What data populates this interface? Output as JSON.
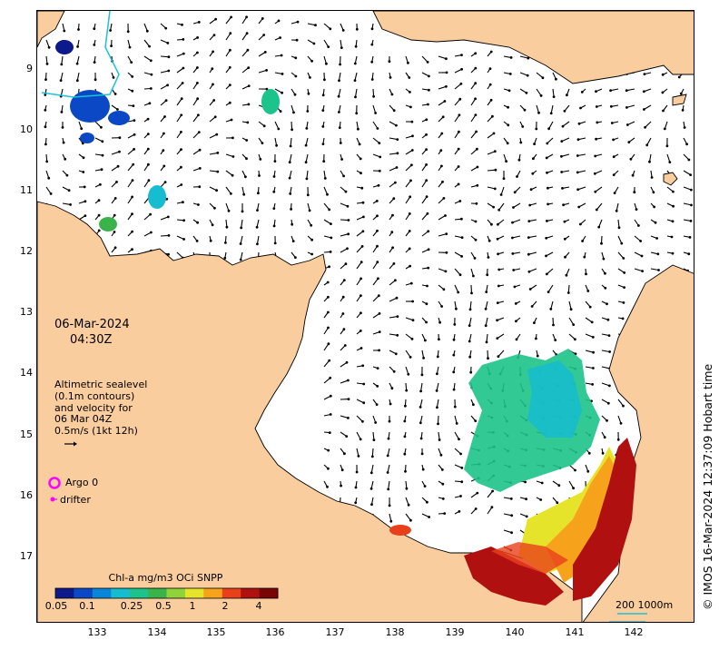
{
  "map": {
    "date": "06-Mar-2024",
    "time": "04:30Z",
    "info_lines": [
      "Altimetric sealevel",
      "(0.1m contours)",
      "and velocity for",
      "06 Mar 04Z",
      "0.5m/s (1kt 12h)"
    ],
    "argo_label": "Argo 0",
    "drifter_label": "drifter",
    "credit": "© IMOS 16-Mar-2024 12:37:09 Hobart time",
    "scale_label": "200  1000m",
    "land_color": "#f9cd9e",
    "argo_color": "#ff00ff"
  },
  "axes": {
    "longitudes": [
      "133",
      "134",
      "135",
      "136",
      "137",
      "138",
      "139",
      "140",
      "141",
      "142"
    ],
    "latitudes": [
      "9",
      "10",
      "11",
      "12",
      "13",
      "14",
      "15",
      "16",
      "17"
    ]
  },
  "colorbar": {
    "title": "Chl-a mg/m3 OCi SNPP",
    "labels": [
      "0.05",
      "0.1",
      "0.25",
      "0.5",
      "1",
      "2",
      "4"
    ],
    "colors": [
      "#0d1a8c",
      "#0a48c6",
      "#0a86d8",
      "#16bcd0",
      "#1cc38a",
      "#3ab44a",
      "#8fd23a",
      "#e6e42a",
      "#f6a21a",
      "#e8401a",
      "#b01010",
      "#7a0505"
    ]
  }
}
